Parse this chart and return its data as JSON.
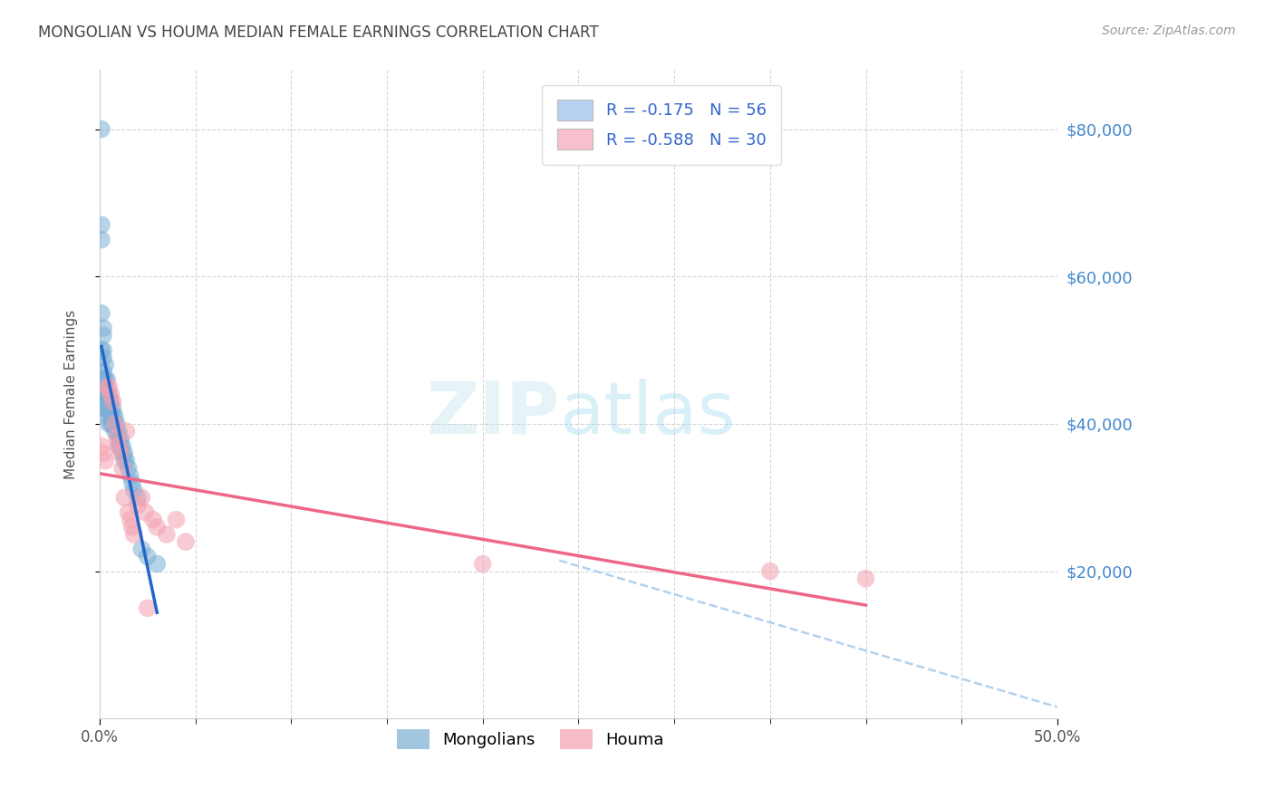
{
  "title": "MONGOLIAN VS HOUMA MEDIAN FEMALE EARNINGS CORRELATION CHART",
  "source": "Source: ZipAtlas.com",
  "ylabel": "Median Female Earnings",
  "y_tick_labels": [
    "$20,000",
    "$40,000",
    "$60,000",
    "$80,000"
  ],
  "y_tick_values": [
    20000,
    40000,
    60000,
    80000
  ],
  "ylim": [
    0,
    88000
  ],
  "xlim": [
    0.0,
    0.5
  ],
  "mongolians_R": -0.175,
  "mongolians_N": 56,
  "houma_R": -0.588,
  "houma_N": 30,
  "mongolian_color": "#7bafd4",
  "houma_color": "#f4a0b0",
  "mongolian_line_color": "#2266cc",
  "houma_line_color": "#ee6688",
  "dashed_line_color": "#aaccee",
  "background_color": "#ffffff",
  "grid_color": "#cccccc",
  "title_color": "#444444",
  "right_tick_color": "#4488cc",
  "legend_box_color_mongolian": "#b8d0f0",
  "legend_box_color_houma": "#f8c0cc",
  "mongolians_x": [
    0.001,
    0.001,
    0.001,
    0.001,
    0.001,
    0.002,
    0.002,
    0.002,
    0.002,
    0.002,
    0.002,
    0.003,
    0.003,
    0.003,
    0.003,
    0.003,
    0.003,
    0.004,
    0.004,
    0.004,
    0.004,
    0.004,
    0.005,
    0.005,
    0.005,
    0.005,
    0.006,
    0.006,
    0.006,
    0.006,
    0.007,
    0.007,
    0.007,
    0.008,
    0.008,
    0.008,
    0.009,
    0.009,
    0.01,
    0.01,
    0.01,
    0.011,
    0.011,
    0.012,
    0.012,
    0.013,
    0.013,
    0.014,
    0.015,
    0.016,
    0.017,
    0.018,
    0.02,
    0.022,
    0.025,
    0.03
  ],
  "mongolians_y": [
    80000,
    67000,
    65000,
    55000,
    50000,
    53000,
    52000,
    50000,
    49000,
    47000,
    46000,
    48000,
    46000,
    45000,
    44000,
    43000,
    42000,
    46000,
    44000,
    43000,
    42000,
    41000,
    44000,
    43000,
    42000,
    40000,
    43000,
    42000,
    41000,
    40000,
    42000,
    41000,
    40000,
    41000,
    40000,
    39000,
    40000,
    39000,
    39000,
    38000,
    37000,
    38000,
    37000,
    37000,
    36000,
    36000,
    35000,
    35000,
    34000,
    33000,
    32000,
    31000,
    30000,
    23000,
    22000,
    21000
  ],
  "houma_x": [
    0.001,
    0.002,
    0.003,
    0.004,
    0.005,
    0.006,
    0.007,
    0.008,
    0.009,
    0.01,
    0.011,
    0.012,
    0.013,
    0.014,
    0.015,
    0.016,
    0.017,
    0.018,
    0.02,
    0.022,
    0.024,
    0.025,
    0.028,
    0.03,
    0.035,
    0.04,
    0.045,
    0.2,
    0.35,
    0.4
  ],
  "houma_y": [
    37000,
    36000,
    35000,
    45000,
    45000,
    44000,
    43000,
    40000,
    38000,
    37000,
    36000,
    34000,
    30000,
    39000,
    28000,
    27000,
    26000,
    25000,
    29000,
    30000,
    28000,
    15000,
    27000,
    26000,
    25000,
    27000,
    24000,
    21000,
    20000,
    19000
  ]
}
